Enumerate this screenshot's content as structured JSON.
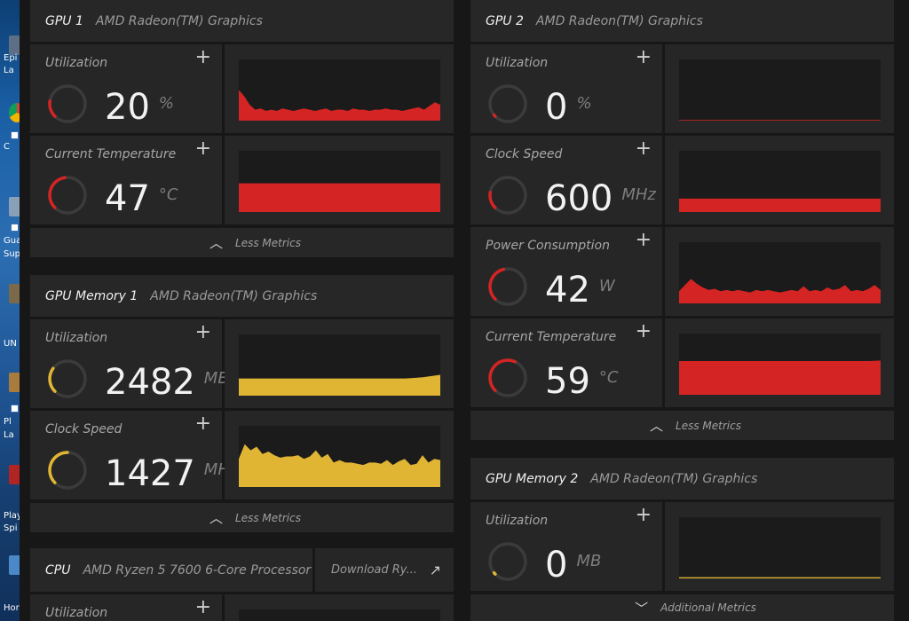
{
  "colors": {
    "red": "#d42424",
    "yellow": "#e0b534",
    "track": "#3b3b3b"
  },
  "desktop": {
    "labels": [
      "Epi",
      "La",
      "C",
      "Gua",
      "Sup",
      "UN",
      "Pl",
      "La",
      "Play",
      "Spi",
      "Hor"
    ]
  },
  "gpu1": {
    "title": "GPU 1",
    "subtitle": "AMD Radeon(TM) Graphics",
    "utilization": {
      "label": "Utilization",
      "value": "20",
      "unit": "%",
      "fraction": 0.2,
      "series": [
        50,
        40,
        26,
        18,
        20,
        16,
        18,
        16,
        20,
        18,
        16,
        18,
        20,
        18,
        16,
        18,
        20,
        16,
        18,
        18,
        16,
        20,
        18,
        18,
        16,
        18,
        18,
        20,
        18,
        18,
        16,
        18,
        20,
        22,
        18,
        24,
        30,
        26
      ]
    },
    "temperature": {
      "label": "Current Temperature",
      "value": "47",
      "unit": "°C",
      "fraction": 0.47,
      "series": [
        47,
        47,
        47,
        47,
        47,
        47,
        47,
        47,
        47,
        47,
        47,
        47,
        47,
        47,
        47,
        47,
        47,
        47,
        47,
        47
      ]
    },
    "footer": "Less Metrics"
  },
  "gpumem1": {
    "title": "GPU Memory 1",
    "subtitle": "AMD Radeon(TM) Graphics",
    "utilization": {
      "label": "Utilization",
      "value": "2482",
      "unit": "MB",
      "fraction": 0.3,
      "series": [
        28,
        28,
        28,
        28,
        28,
        28,
        28,
        28,
        28,
        28,
        28,
        28,
        28,
        28,
        28,
        28,
        28,
        28,
        28,
        28,
        29,
        30,
        32,
        34
      ]
    },
    "clock": {
      "label": "Clock Speed",
      "value": "1427",
      "unit": "MHz",
      "fraction": 0.5,
      "series": [
        46,
        70,
        60,
        66,
        54,
        58,
        52,
        48,
        50,
        50,
        52,
        46,
        50,
        60,
        48,
        54,
        40,
        44,
        40,
        40,
        38,
        36,
        40,
        40,
        38,
        44,
        36,
        42,
        46,
        36,
        38,
        52,
        40,
        46,
        44
      ]
    },
    "footer": "Less Metrics"
  },
  "cpu": {
    "title": "CPU",
    "subtitle": "AMD Ryzen 5 7600 6-Core Processor",
    "download_label": "Download Ry...",
    "utilization": {
      "label": "Utilization"
    }
  },
  "gpu2": {
    "title": "GPU 2",
    "subtitle": "AMD Radeon(TM) Graphics",
    "utilization": {
      "label": "Utilization",
      "value": "0",
      "unit": "%",
      "fraction": 0.0,
      "series": [
        1,
        1,
        1,
        1,
        1,
        1,
        1,
        1,
        1,
        1
      ]
    },
    "clock": {
      "label": "Clock Speed",
      "value": "600",
      "unit": "MHz",
      "fraction": 0.2,
      "series": [
        22,
        22,
        22,
        22,
        22,
        22,
        22,
        22,
        22,
        22
      ]
    },
    "power": {
      "label": "Power Consumption",
      "value": "42",
      "unit": "W",
      "fraction": 0.45,
      "series": [
        20,
        30,
        40,
        32,
        26,
        22,
        24,
        20,
        22,
        20,
        22,
        20,
        18,
        22,
        20,
        22,
        20,
        18,
        20,
        22,
        20,
        28,
        20,
        22,
        20,
        26,
        22,
        24,
        30,
        20,
        22,
        20,
        24,
        30,
        22
      ]
    },
    "temperature": {
      "label": "Current Temperature",
      "value": "59",
      "unit": "°C",
      "fraction": 0.59,
      "series": [
        55,
        55,
        55,
        55,
        55,
        55,
        55,
        55,
        55,
        55,
        55,
        55,
        55,
        55,
        55,
        55,
        55,
        55,
        55,
        56
      ]
    },
    "footer": "Less Metrics"
  },
  "gpumem2": {
    "title": "GPU Memory 2",
    "subtitle": "AMD Radeon(TM) Graphics",
    "utilization": {
      "label": "Utilization",
      "value": "0",
      "unit": "MB",
      "fraction": 0.0,
      "series": [
        2,
        2,
        2,
        2,
        2,
        2,
        2,
        2,
        2,
        2
      ]
    },
    "footer": "Additional Metrics"
  }
}
